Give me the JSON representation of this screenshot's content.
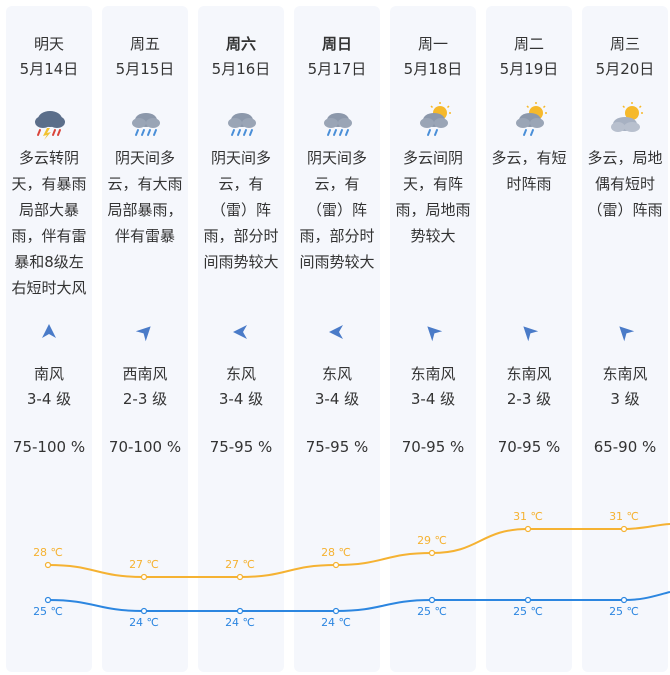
{
  "days": [
    {
      "day": "明天",
      "date": "5月14日",
      "bold": false,
      "icon": "thunderstorm-icon",
      "desc": [
        "多云转阴",
        "天，有暴雨",
        "局部大暴",
        "雨，伴有雷",
        "暴和8级左",
        "右短时大风"
      ],
      "wind_dir": "南风",
      "wind_level": "3-4 级",
      "humidity": "75-100 %",
      "high": "28 ℃",
      "low": "25 ℃",
      "high_val": 28,
      "low_val": 25
    },
    {
      "day": "周五",
      "date": "5月15日",
      "bold": false,
      "icon": "heavy-rain-icon",
      "desc": [
        "阴天间多",
        "云，有大雨",
        "局部暴雨，",
        "伴有雷暴"
      ],
      "wind_dir": "西南风",
      "wind_level": "2-3 级",
      "humidity": "70-100 %",
      "high": "27 ℃",
      "low": "24 ℃",
      "high_val": 27,
      "low_val": 24
    },
    {
      "day": "周六",
      "date": "5月16日",
      "bold": true,
      "icon": "heavy-rain-icon",
      "desc": [
        "阴天间多",
        "云，有",
        "（雷）阵",
        "雨，部分时",
        "间雨势较大"
      ],
      "wind_dir": "东风",
      "wind_level": "3-4 级",
      "humidity": "75-95 %",
      "high": "27 ℃",
      "low": "24 ℃",
      "high_val": 27,
      "low_val": 24
    },
    {
      "day": "周日",
      "date": "5月17日",
      "bold": true,
      "icon": "heavy-rain-icon",
      "desc": [
        "阴天间多",
        "云，有",
        "（雷）阵",
        "雨，部分时",
        "间雨势较大"
      ],
      "wind_dir": "东风",
      "wind_level": "3-4 级",
      "humidity": "75-95 %",
      "high": "28 ℃",
      "low": "24 ℃",
      "high_val": 28,
      "low_val": 24
    },
    {
      "day": "周一",
      "date": "5月18日",
      "bold": false,
      "icon": "sun-cloud-rain-icon",
      "desc": [
        "多云间阴",
        "天，有阵",
        "雨，局地雨",
        "势较大"
      ],
      "wind_dir": "东南风",
      "wind_level": "3-4 级",
      "humidity": "70-95 %",
      "high": "29 ℃",
      "low": "25 ℃",
      "high_val": 29,
      "low_val": 25
    },
    {
      "day": "周二",
      "date": "5月19日",
      "bold": false,
      "icon": "sun-cloud-rain-icon",
      "desc": [
        "多云，有短",
        "时阵雨"
      ],
      "wind_dir": "东南风",
      "wind_level": "2-3 级",
      "humidity": "70-95 %",
      "high": "31 ℃",
      "low": "25 ℃",
      "high_val": 31,
      "low_val": 25
    },
    {
      "day": "周三",
      "date": "5月20日",
      "bold": false,
      "icon": "partly-cloudy-icon",
      "desc": [
        "多云，局地",
        "偶有短时",
        "（雷）阵雨"
      ],
      "wind_dir": "东南风",
      "wind_level": "3 级",
      "humidity": "65-90 %",
      "high": "31 ℃",
      "low": "25 ℃",
      "high_val": 31,
      "low_val": 25
    }
  ],
  "colors": {
    "high_line": "#f5b232",
    "low_line": "#2c86e0",
    "wind_arrow": "#4a7bc8",
    "column_bg": "#f5f7fc"
  }
}
